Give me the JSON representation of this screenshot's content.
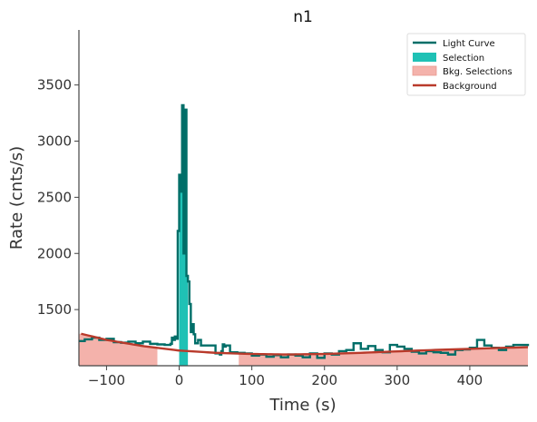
{
  "chart_data": {
    "type": "line",
    "title": "n1",
    "xlabel": "Time (s)",
    "ylabel": "Rate (cnts/s)",
    "xlim": [
      -138,
      480
    ],
    "ylim": [
      1000,
      3990
    ],
    "xticks": [
      -100,
      0,
      100,
      200,
      300,
      400
    ],
    "xtick_labels": [
      "−100",
      "0",
      "100",
      "200",
      "300",
      "400"
    ],
    "yticks": [
      1500,
      2000,
      2500,
      3000,
      3500
    ],
    "ytick_labels": [
      "1500",
      "2000",
      "2500",
      "3000",
      "3500"
    ],
    "grid": false,
    "legend_position": "top-right",
    "legend": [
      "Light Curve",
      "Selection",
      "Bkg. Selections",
      "Background"
    ],
    "colors": {
      "light_curve": "#006e68",
      "selection": "#1fc1b5",
      "bkg_selection": "#f4b2ab",
      "background": "#b93a2b",
      "axis": "#444444"
    },
    "selection_interval": [
      0,
      12
    ],
    "bkg_selection_intervals": [
      [
        -138,
        -30
      ],
      [
        82,
        480
      ]
    ],
    "background_fit": {
      "x": [
        -135,
        -100,
        -50,
        0,
        50,
        100,
        150,
        200,
        250,
        300,
        350,
        400,
        450,
        480
      ],
      "y": [
        1285,
        1230,
        1175,
        1135,
        1115,
        1105,
        1100,
        1105,
        1115,
        1128,
        1140,
        1150,
        1160,
        1165
      ]
    },
    "light_curve": {
      "x": [
        -138,
        -130,
        -120,
        -110,
        -100,
        -90,
        -80,
        -70,
        -60,
        -50,
        -40,
        -30,
        -20,
        -12,
        -10,
        -8,
        -6,
        -4,
        -2,
        0,
        2,
        4,
        6,
        8,
        10,
        12,
        14,
        16,
        18,
        20,
        22,
        26,
        30,
        40,
        50,
        56,
        58,
        60,
        62,
        64,
        70,
        80,
        90,
        100,
        110,
        120,
        130,
        140,
        150,
        160,
        170,
        180,
        190,
        200,
        210,
        220,
        230,
        240,
        250,
        260,
        270,
        280,
        290,
        300,
        310,
        320,
        330,
        340,
        350,
        360,
        370,
        380,
        390,
        400,
        410,
        420,
        430,
        440,
        450,
        460,
        470,
        480
      ],
      "y": [
        1220,
        1235,
        1250,
        1230,
        1240,
        1210,
        1205,
        1215,
        1200,
        1215,
        1195,
        1190,
        1185,
        1195,
        1250,
        1230,
        1260,
        1240,
        2200,
        2700,
        2550,
        3320,
        2000,
        3280,
        1800,
        1750,
        1550,
        1300,
        1370,
        1280,
        1200,
        1230,
        1180,
        1180,
        1110,
        1100,
        1130,
        1190,
        1170,
        1180,
        1120,
        1115,
        1110,
        1090,
        1100,
        1080,
        1095,
        1075,
        1100,
        1090,
        1075,
        1110,
        1070,
        1110,
        1100,
        1130,
        1140,
        1200,
        1150,
        1175,
        1140,
        1120,
        1185,
        1170,
        1150,
        1125,
        1110,
        1130,
        1120,
        1115,
        1100,
        1140,
        1145,
        1160,
        1230,
        1180,
        1160,
        1140,
        1170,
        1185,
        1185,
        1175
      ]
    }
  }
}
